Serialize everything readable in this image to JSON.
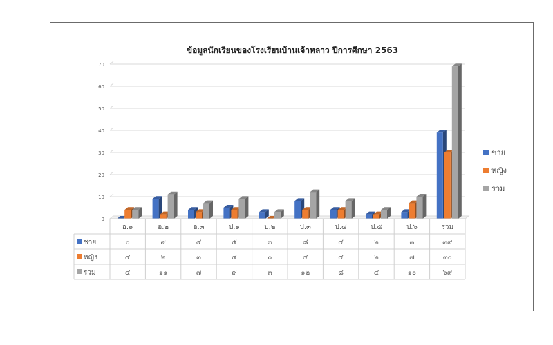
{
  "chart_data": {
    "type": "bar",
    "title": "ข้อมูลนักเรียนของโรงเรียนบ้านเจ้าหลาว ปีการศึกษา 2563",
    "categories": [
      "อ.๑",
      "อ.๒",
      "อ.๓",
      "ป.๑",
      "ป.๒",
      "ป.๓",
      "ป.๔",
      "ป.๕",
      "ป.๖",
      "รวม"
    ],
    "ylim": [
      0,
      70
    ],
    "yticks": [
      "0",
      "10",
      "20",
      "30",
      "40",
      "50",
      "60",
      "70"
    ],
    "grid": true,
    "legend_position": "right",
    "series": [
      {
        "name": "ชาย",
        "color": "#4472c4",
        "values": [
          0,
          9,
          4,
          5,
          3,
          8,
          4,
          2,
          3,
          39
        ],
        "labels": [
          "๐",
          "๙",
          "๔",
          "๕",
          "๓",
          "๘",
          "๔",
          "๒",
          "๓",
          "๓๙"
        ]
      },
      {
        "name": "หญิง",
        "color": "#ed7d31",
        "values": [
          4,
          2,
          3,
          4,
          0,
          4,
          4,
          2,
          7,
          30
        ],
        "labels": [
          "๔",
          "๒",
          "๓",
          "๔",
          "๐",
          "๔",
          "๔",
          "๒",
          "๗",
          "๓๐"
        ]
      },
      {
        "name": "รวม",
        "color": "#a5a5a5",
        "values": [
          4,
          11,
          7,
          9,
          3,
          12,
          8,
          4,
          10,
          69
        ],
        "labels": [
          "๔",
          "๑๑",
          "๗",
          "๙",
          "๓",
          "๑๒",
          "๘",
          "๔",
          "๑๐",
          "๖๙"
        ]
      }
    ]
  }
}
